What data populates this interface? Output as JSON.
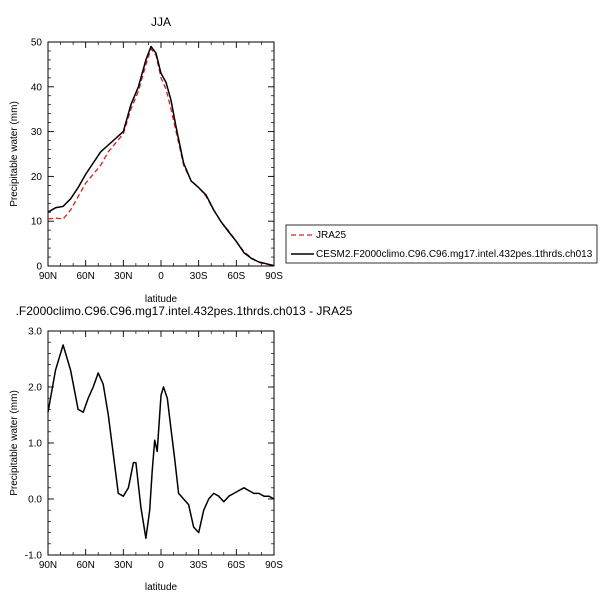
{
  "chart_data": [
    {
      "type": "line",
      "title": "JJA",
      "xlabel": "latitude",
      "ylabel": "Precipitable water (mm)",
      "xlim": [
        90,
        -90
      ],
      "ylim": [
        0,
        50
      ],
      "x_ticks": [
        90,
        60,
        30,
        0,
        -30,
        -60,
        -90
      ],
      "x_tick_labels": [
        "90N",
        "60N",
        "30N",
        "0",
        "30S",
        "60S",
        "90S"
      ],
      "y_ticks": [
        0,
        10,
        20,
        30,
        40,
        50
      ],
      "y_tick_labels": [
        "0",
        "10",
        "20",
        "30",
        "40",
        "50"
      ],
      "legend_position": "right",
      "series": [
        {
          "name": "JRA25",
          "color": "#d62020",
          "dash": "dashed",
          "x": [
            90,
            84,
            78,
            72,
            66,
            60,
            54,
            48,
            42,
            36,
            30,
            24,
            18,
            12,
            8,
            4,
            0,
            -4,
            -8,
            -12,
            -18,
            -24,
            -30,
            -36,
            -42,
            -48,
            -54,
            -60,
            -66,
            -72,
            -78,
            -84,
            -90
          ],
          "y": [
            10.5,
            10.7,
            10.5,
            12.5,
            15.5,
            18.5,
            20.5,
            22.5,
            25.5,
            27.5,
            29.5,
            35,
            39,
            45,
            48.5,
            47,
            42,
            39.5,
            35,
            30,
            22.5,
            19,
            17.5,
            15.5,
            12.5,
            9.8,
            7.8,
            5.5,
            3.2,
            1.8,
            0.8,
            0.4,
            0.1
          ]
        },
        {
          "name": "CESM2.F2000climo.C96.C96.mg17.intel.432pes.1thrds.ch013",
          "color": "#000000",
          "dash": "solid",
          "x": [
            90,
            84,
            78,
            72,
            66,
            60,
            54,
            48,
            42,
            36,
            30,
            24,
            18,
            12,
            8,
            4,
            0,
            -4,
            -8,
            -12,
            -18,
            -24,
            -30,
            -36,
            -42,
            -48,
            -54,
            -60,
            -66,
            -72,
            -78,
            -84,
            -90
          ],
          "y": [
            12,
            13,
            13.3,
            15,
            17.5,
            20.5,
            23,
            25.5,
            27,
            28.5,
            30,
            36,
            40,
            46,
            49,
            47.5,
            43,
            41,
            37,
            31,
            23,
            19,
            17.5,
            15.8,
            12.5,
            9.8,
            7.6,
            5.5,
            3,
            1.7,
            0.9,
            0.5,
            0.1
          ]
        }
      ]
    },
    {
      "type": "line",
      "title": ".F2000climo.C96.C96.mg17.intel.432pes.1thrds.ch013 - JRA25",
      "xlabel": "latitude",
      "ylabel": "Precipitable water (mm)",
      "xlim": [
        90,
        -90
      ],
      "ylim": [
        -1.0,
        3.0
      ],
      "x_ticks": [
        90,
        60,
        30,
        0,
        -30,
        -60,
        -90
      ],
      "x_tick_labels": [
        "90N",
        "60N",
        "30N",
        "0",
        "30S",
        "60S",
        "90S"
      ],
      "y_ticks": [
        -1,
        0,
        1,
        2,
        3
      ],
      "y_tick_labels": [
        "-1.0",
        "0.0",
        "1.0",
        "2.0",
        "3.0"
      ],
      "series": [
        {
          "color": "#000000",
          "dash": "solid",
          "x": [
            90,
            84,
            78,
            72,
            66,
            62,
            58,
            54,
            50,
            46,
            42,
            38,
            34,
            30,
            26,
            22,
            20,
            16,
            12,
            9,
            7,
            5,
            3,
            0,
            -2,
            -5,
            -8,
            -11,
            -14,
            -18,
            -22,
            -26,
            -30,
            -34,
            -38,
            -42,
            -46,
            -50,
            -54,
            -58,
            -62,
            -66,
            -70,
            -74,
            -78,
            -82,
            -86,
            -90
          ],
          "y": [
            1.55,
            2.3,
            2.75,
            2.3,
            1.6,
            1.55,
            1.8,
            2.0,
            2.25,
            2.05,
            1.5,
            0.8,
            0.1,
            0.05,
            0.2,
            0.65,
            0.65,
            -0.15,
            -0.7,
            -0.2,
            0.5,
            1.05,
            0.85,
            1.85,
            2.0,
            1.8,
            1.25,
            0.7,
            0.1,
            0.0,
            -0.1,
            -0.5,
            -0.6,
            -0.2,
            0.0,
            0.1,
            0.05,
            -0.05,
            0.05,
            0.1,
            0.15,
            0.2,
            0.15,
            0.1,
            0.1,
            0.05,
            0.05,
            0.0
          ]
        }
      ]
    }
  ]
}
